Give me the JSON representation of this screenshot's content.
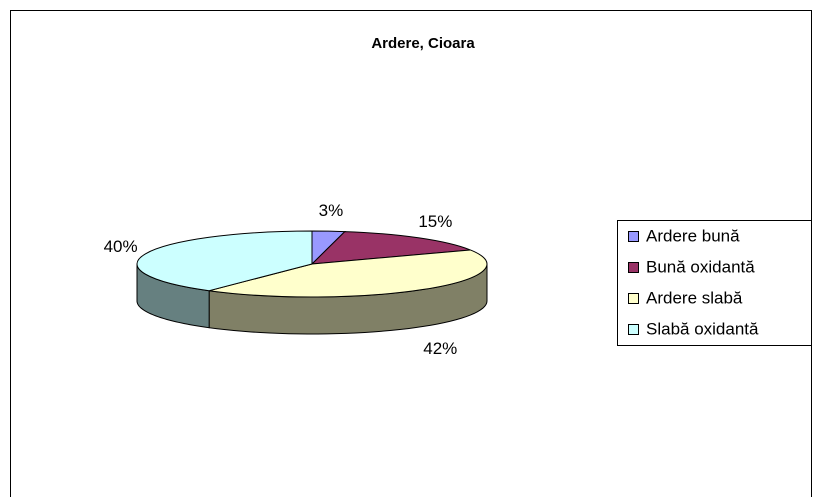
{
  "chart_data": {
    "type": "pie",
    "title": "Ardere, Cioara",
    "categories": [
      "Ardere bună",
      "Bună oxidantă",
      "Ardere slabă",
      "Slabă oxidantă"
    ],
    "values": [
      3,
      15,
      42,
      40
    ],
    "value_labels": [
      "3%",
      "15%",
      "42%",
      "40%"
    ],
    "colors": [
      "#9999ff",
      "#993366",
      "#ffffcc",
      "#ccffff"
    ],
    "legend": "right"
  }
}
